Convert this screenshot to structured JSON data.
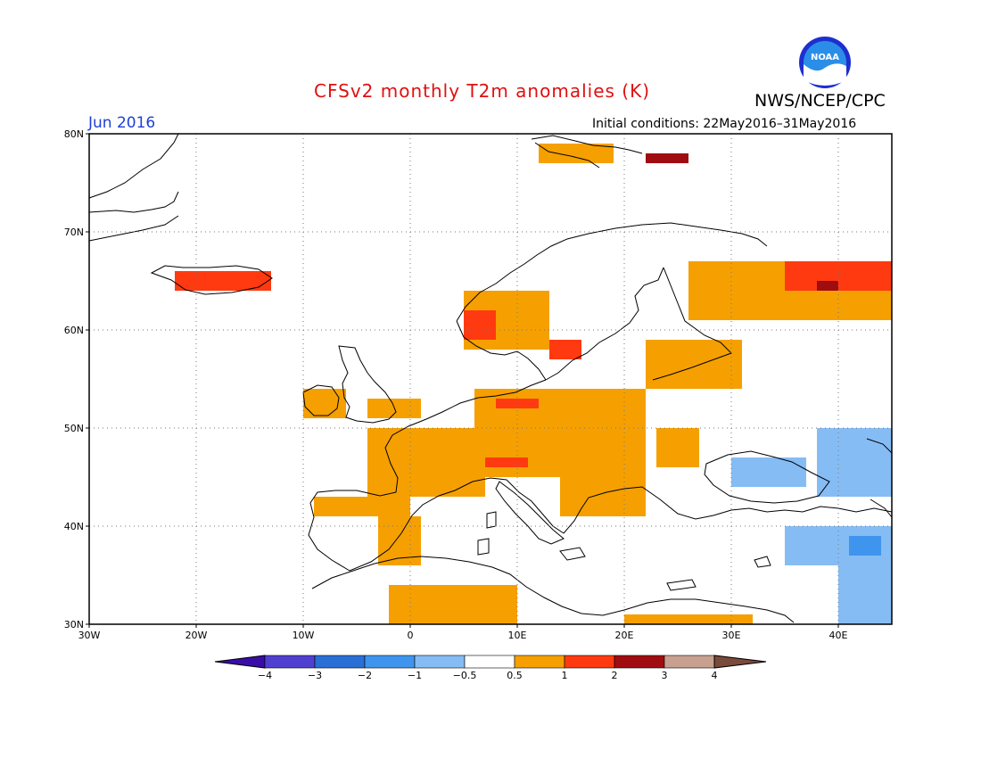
{
  "header": {
    "title": "CFSv2 monthly T2m anomalies (K)",
    "org": "NWS/NCEP/CPC",
    "month": "Jun 2016",
    "initial_conditions": "Initial conditions: 22May2016–31May2016",
    "logo_text": "NOAA"
  },
  "map": {
    "lon_range": [
      -30,
      45
    ],
    "lat_range": [
      30,
      80
    ],
    "grid": true,
    "lon_ticks": [
      {
        "lon": -30,
        "label": "30W"
      },
      {
        "lon": -20,
        "label": "20W"
      },
      {
        "lon": -10,
        "label": "10W"
      },
      {
        "lon": 0,
        "label": "0"
      },
      {
        "lon": 10,
        "label": "10E"
      },
      {
        "lon": 20,
        "label": "20E"
      },
      {
        "lon": 30,
        "label": "30E"
      },
      {
        "lon": 40,
        "label": "40E"
      }
    ],
    "lat_ticks": [
      {
        "lat": 80,
        "label": "80N"
      },
      {
        "lat": 70,
        "label": "70N"
      },
      {
        "lat": 60,
        "label": "60N"
      },
      {
        "lat": 50,
        "label": "50N"
      },
      {
        "lat": 40,
        "label": "40N"
      },
      {
        "lat": 30,
        "label": "30N"
      }
    ]
  },
  "colorbar": {
    "labels": [
      "−4",
      "−3",
      "−2",
      "−1",
      "−0.5",
      "0.5",
      "1",
      "2",
      "3",
      "4"
    ],
    "colors": [
      "#3a0da8",
      "#5040d0",
      "#2a6fd6",
      "#3f94ee",
      "#86bcf4",
      "#ffffff",
      "#f5a000",
      "#ff3a10",
      "#a00d10",
      "#c7a090",
      "#7a4a3a"
    ]
  },
  "anomaly_regions": [
    {
      "name": "france",
      "value": 0.8,
      "lon": [
        -4,
        7
      ],
      "lat": [
        43,
        50
      ]
    },
    {
      "name": "iberia-north",
      "value": 0.8,
      "lon": [
        -9,
        0
      ],
      "lat": [
        41,
        43
      ]
    },
    {
      "name": "iberia-east",
      "value": 0.8,
      "lon": [
        -3,
        1
      ],
      "lat": [
        36,
        41
      ]
    },
    {
      "name": "central-europe",
      "value": 0.8,
      "lon": [
        6,
        22
      ],
      "lat": [
        45,
        54
      ]
    },
    {
      "name": "germany-north",
      "value": 1.5,
      "lon": [
        8,
        12
      ],
      "lat": [
        52,
        53
      ]
    },
    {
      "name": "alps",
      "value": 1.5,
      "lon": [
        7,
        11
      ],
      "lat": [
        46,
        47
      ]
    },
    {
      "name": "balkans",
      "value": 0.8,
      "lon": [
        14,
        22
      ],
      "lat": [
        41,
        46
      ]
    },
    {
      "name": "baltics",
      "value": 0.8,
      "lon": [
        22,
        31
      ],
      "lat": [
        54,
        59
      ]
    },
    {
      "name": "norway-coast",
      "value": 0.8,
      "lon": [
        5,
        13
      ],
      "lat": [
        58,
        64
      ]
    },
    {
      "name": "norway-southwest",
      "value": 1.5,
      "lon": [
        5,
        8
      ],
      "lat": [
        59,
        62
      ]
    },
    {
      "name": "sweden-south",
      "value": 1.5,
      "lon": [
        13,
        16
      ],
      "lat": [
        57,
        59
      ]
    },
    {
      "name": "russia-north",
      "value": 0.8,
      "lon": [
        26,
        45
      ],
      "lat": [
        61,
        67
      ]
    },
    {
      "name": "kola-hot",
      "value": 1.5,
      "lon": [
        35,
        45
      ],
      "lat": [
        64,
        67
      ]
    },
    {
      "name": "kola-very-hot",
      "value": 2.5,
      "lon": [
        38,
        40
      ],
      "lat": [
        64,
        65
      ]
    },
    {
      "name": "iceland",
      "value": 1.5,
      "lon": [
        -22,
        -13
      ],
      "lat": [
        64,
        66
      ]
    },
    {
      "name": "ireland",
      "value": 0.8,
      "lon": [
        -10,
        -6
      ],
      "lat": [
        51,
        54
      ]
    },
    {
      "name": "britain-east",
      "value": 0.8,
      "lon": [
        -4,
        1
      ],
      "lat": [
        51,
        53
      ]
    },
    {
      "name": "north-africa",
      "value": 0.8,
      "lon": [
        -2,
        10
      ],
      "lat": [
        30,
        34
      ]
    },
    {
      "name": "libya-egypt",
      "value": 0.8,
      "lon": [
        20,
        32
      ],
      "lat": [
        30,
        31
      ]
    },
    {
      "name": "svalbard",
      "value": 0.8,
      "lon": [
        12,
        19
      ],
      "lat": [
        77,
        79
      ]
    },
    {
      "name": "svalbard-east",
      "value": 2.5,
      "lon": [
        22,
        26
      ],
      "lat": [
        77,
        78
      ]
    },
    {
      "name": "ukraine",
      "value": 0.8,
      "lon": [
        23,
        27
      ],
      "lat": [
        46,
        50
      ]
    },
    {
      "name": "black-sea-cool",
      "value": -0.8,
      "lon": [
        30,
        37
      ],
      "lat": [
        44,
        47
      ]
    },
    {
      "name": "russia-south-cool",
      "value": -0.8,
      "lon": [
        38,
        45
      ],
      "lat": [
        43,
        50
      ]
    },
    {
      "name": "turkey-cool",
      "value": -0.8,
      "lon": [
        35,
        45
      ],
      "lat": [
        36,
        40
      ]
    },
    {
      "name": "caucasus-cool",
      "value": -1.5,
      "lon": [
        41,
        44
      ],
      "lat": [
        37,
        39
      ]
    },
    {
      "name": "levant-cool",
      "value": -0.8,
      "lon": [
        40,
        45
      ],
      "lat": [
        30,
        36
      ]
    }
  ]
}
